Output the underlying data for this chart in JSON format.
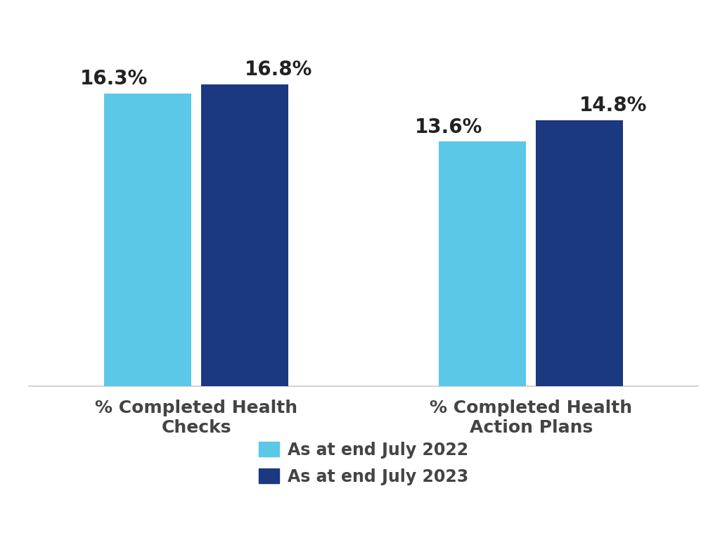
{
  "categories": [
    "% Completed Health\nChecks",
    "% Completed Health\nAction Plans"
  ],
  "values_2022": [
    16.3,
    13.6
  ],
  "values_2023": [
    16.8,
    14.8
  ],
  "labels_2022": [
    "16.3%",
    "13.6%"
  ],
  "labels_2023": [
    "16.8%",
    "14.8%"
  ],
  "color_2022": "#5BC8E8",
  "color_2023": "#1A3980",
  "legend_2022": "As at end July 2022",
  "legend_2023": "As at end July 2023",
  "background_color": "#ffffff",
  "bar_width": 0.13,
  "ylim": [
    0,
    20
  ],
  "label_fontsize": 20,
  "tick_fontsize": 18,
  "legend_fontsize": 17,
  "x_positions": [
    0.25,
    0.75
  ],
  "xlim": [
    0.0,
    1.0
  ]
}
